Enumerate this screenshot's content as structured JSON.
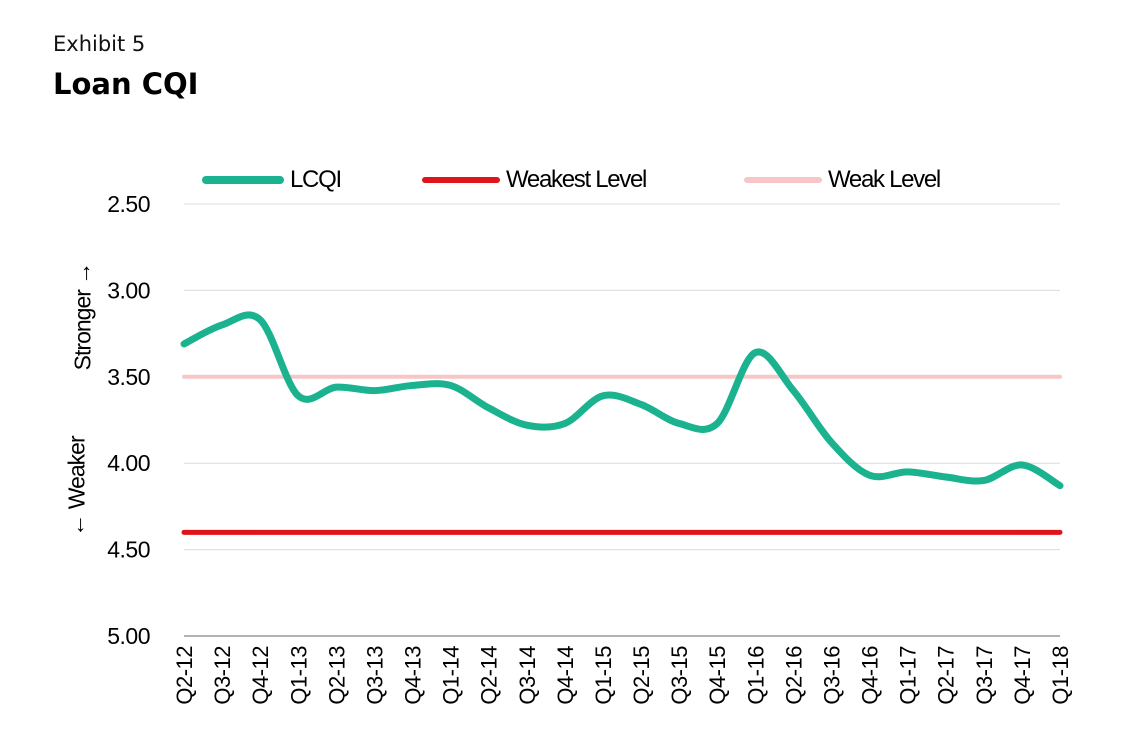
{
  "header": {
    "exhibit": "Exhibit 5",
    "title": "Loan CQI"
  },
  "axis_labels": {
    "stronger": "Stronger →",
    "weaker": "← Weaker"
  },
  "colors": {
    "lcqi": "#1BB38F",
    "weakest": "#E0141B",
    "weak": "#F7C6C6",
    "grid": "#DCDCDC"
  },
  "chart_data": {
    "type": "line",
    "title": "Loan CQI",
    "xlabel": "",
    "ylabel": "",
    "y_reversed": true,
    "ylim": [
      2.5,
      5.0
    ],
    "yticks": [
      "2.50",
      "3.00",
      "3.50",
      "4.00",
      "4.50",
      "5.00"
    ],
    "ytick_values": [
      2.5,
      3.0,
      3.5,
      4.0,
      4.5,
      5.0
    ],
    "categories": [
      "Q2-12",
      "Q3-12",
      "Q4-12",
      "Q1-13",
      "Q2-13",
      "Q3-13",
      "Q4-13",
      "Q1-14",
      "Q2-14",
      "Q3-14",
      "Q4-14",
      "Q1-15",
      "Q2-15",
      "Q3-15",
      "Q4-15",
      "Q1-16",
      "Q2-16",
      "Q3-16",
      "Q4-16",
      "Q1-17",
      "Q2-17",
      "Q3-17",
      "Q4-17",
      "Q1-18"
    ],
    "series": [
      {
        "name": "LCQI",
        "values": [
          3.31,
          3.2,
          3.17,
          3.61,
          3.56,
          3.58,
          3.55,
          3.55,
          3.68,
          3.78,
          3.77,
          3.61,
          3.66,
          3.77,
          3.77,
          3.36,
          3.58,
          3.88,
          4.07,
          4.05,
          4.08,
          4.1,
          4.01,
          4.13
        ]
      },
      {
        "name": "Weakest Level",
        "values": [
          4.4,
          4.4,
          4.4,
          4.4,
          4.4,
          4.4,
          4.4,
          4.4,
          4.4,
          4.4,
          4.4,
          4.4,
          4.4,
          4.4,
          4.4,
          4.4,
          4.4,
          4.4,
          4.4,
          4.4,
          4.4,
          4.4,
          4.4,
          4.4
        ]
      },
      {
        "name": "Weak Level",
        "values": [
          3.5,
          3.5,
          3.5,
          3.5,
          3.5,
          3.5,
          3.5,
          3.5,
          3.5,
          3.5,
          3.5,
          3.5,
          3.5,
          3.5,
          3.5,
          3.5,
          3.5,
          3.5,
          3.5,
          3.5,
          3.5,
          3.5,
          3.5,
          3.5
        ]
      }
    ],
    "grid": true,
    "legend_position": "top"
  }
}
